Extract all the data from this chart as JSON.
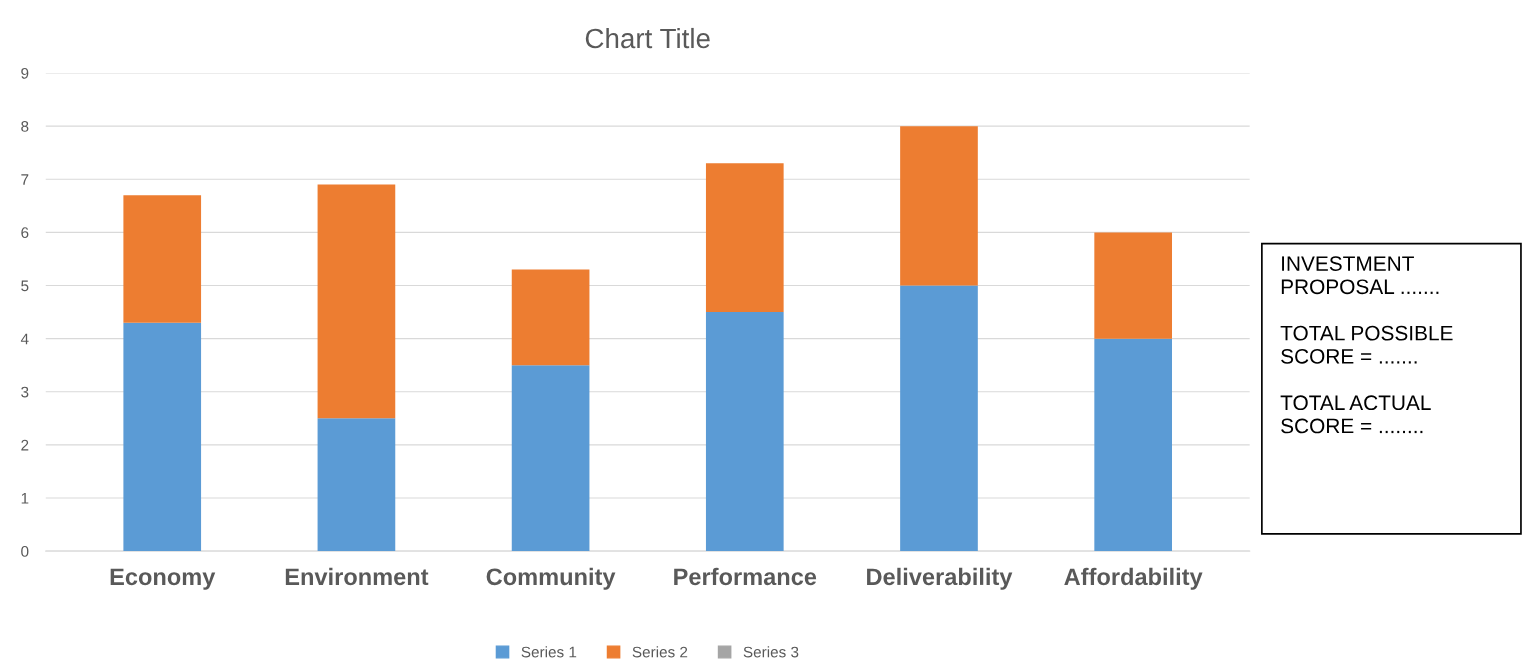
{
  "chart_data": {
    "type": "bar",
    "title": "Chart Title",
    "stacked": true,
    "categories": [
      "Economy",
      "Environment",
      "Community",
      "Performance",
      "Deliverability",
      "Affordability"
    ],
    "series": [
      {
        "name": "Series 1",
        "color": "#5b9bd5",
        "values": [
          4.3,
          2.5,
          3.5,
          4.5,
          5,
          4
        ]
      },
      {
        "name": "Series 2",
        "color": "#ed7d31",
        "values": [
          2.4,
          4.4,
          1.8,
          2.8,
          3,
          2
        ]
      },
      {
        "name": "Series 3",
        "color": "#a5a5a5",
        "values": [
          null,
          null,
          null,
          null,
          null,
          null
        ]
      }
    ],
    "ylim": [
      0,
      9
    ],
    "yticks": [
      0,
      1,
      2,
      3,
      4,
      5,
      6,
      7,
      8,
      9
    ],
    "grid": "y",
    "legend": "bottom",
    "annotations": [
      "INVESTMENT\nPROPOSAL .......\n\nTOTAL POSSIBLE\nSCORE = .......\n\nTOTAL ACTUAL\nSCORE = ........"
    ]
  }
}
